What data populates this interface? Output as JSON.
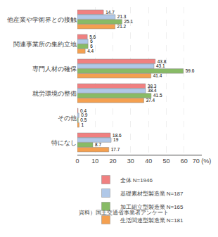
{
  "chart_data": {
    "type": "bar",
    "orientation": "horizontal",
    "categories": [
      "他産業や学術界との接触",
      "関連事業所の集約立地",
      "専門人材の確保",
      "就労環境の整備",
      "その他",
      "特になし"
    ],
    "series": [
      {
        "name": "全体 N=1946",
        "color": "#F08080",
        "values": [
          14.7,
          5.6,
          43.8,
          38.3,
          0.4,
          18.6
        ]
      },
      {
        "name": "基礎素材型製造業 N=187",
        "color": "#B0C8E8",
        "values": [
          21.3,
          6.0,
          43.1,
          38.4,
          0.9,
          19.0
        ]
      },
      {
        "name": "加工組立型製造業 N=165",
        "color": "#88BB66",
        "values": [
          25.1,
          6.0,
          59.6,
          41.5,
          0.5,
          8.7
        ]
      },
      {
        "name": "生活関連型製造業 N=181",
        "color": "#F4A050",
        "values": [
          21.2,
          4.4,
          41.4,
          37.4,
          1.0,
          17.7
        ]
      }
    ],
    "xlim": [
      0,
      70
    ],
    "xticks": [
      0,
      10,
      20,
      30,
      40,
      50,
      60,
      {
        "value": 70,
        "label": "70 (%)"
      }
    ],
    "grid": true,
    "data_labels": true,
    "legend": "bottom",
    "annotations": [
      "資料）国土交通省事業者アンケート"
    ]
  }
}
